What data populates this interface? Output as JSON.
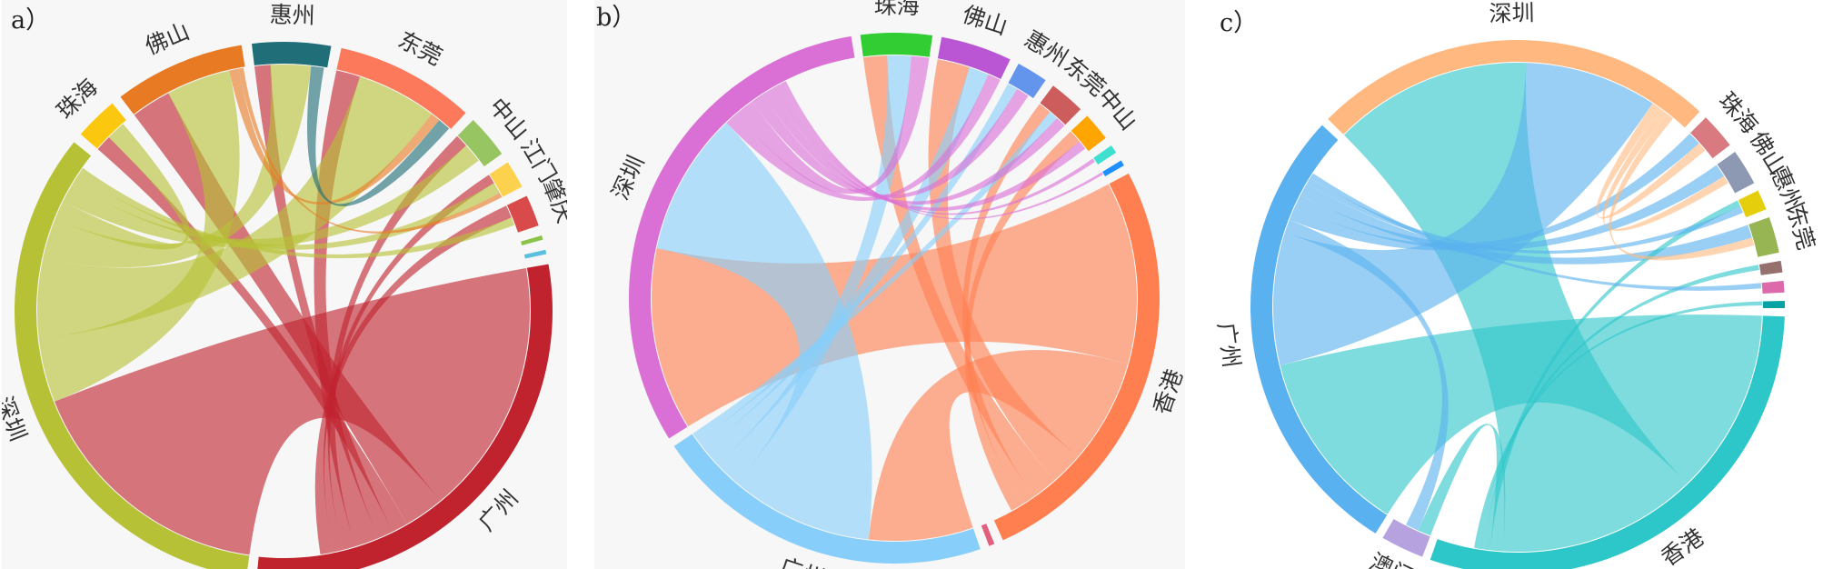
{
  "chart_data": [
    {
      "type": "chord",
      "panel": "a）",
      "groups": [
        {
          "name": "广州",
          "color": "#c0232e",
          "size": 28
        },
        {
          "name": "深圳",
          "color": "#b6c136",
          "size": 32
        },
        {
          "name": "珠海",
          "color": "#fcc80f",
          "size": 2.5
        },
        {
          "name": "佛山",
          "color": "#e97a24",
          "size": 7.5
        },
        {
          "name": "惠州",
          "color": "#1f6e78",
          "size": 4.5
        },
        {
          "name": "东莞",
          "color": "#fc7a5b",
          "size": 8
        },
        {
          "name": "中山",
          "color": "#96c561",
          "size": 2.5
        },
        {
          "name": "江门",
          "color": "#fcd14d",
          "size": 1.6
        },
        {
          "name": "肇庆",
          "color": "#d94a4a",
          "size": 1.8
        },
        {
          "name": "",
          "color": "#8bc34a",
          "size": 0.25
        },
        {
          "name": "",
          "color": "#5bc0de",
          "size": 0.25
        }
      ],
      "flows": [
        {
          "source": 0,
          "target": 1,
          "value": 16
        },
        {
          "source": 0,
          "target": 3,
          "value": 2.5
        },
        {
          "source": 0,
          "target": 2,
          "value": 1
        },
        {
          "source": 0,
          "target": 4,
          "value": 1
        },
        {
          "source": 0,
          "target": 5,
          "value": 1.5
        },
        {
          "source": 0,
          "target": 6,
          "value": 0.8
        },
        {
          "source": 0,
          "target": 7,
          "value": 0.6
        },
        {
          "source": 0,
          "target": 8,
          "value": 0.8
        },
        {
          "source": 1,
          "target": 3,
          "value": 4
        },
        {
          "source": 1,
          "target": 5,
          "value": 5
        },
        {
          "source": 1,
          "target": 4,
          "value": 2.5
        },
        {
          "source": 1,
          "target": 2,
          "value": 1.2
        },
        {
          "source": 1,
          "target": 6,
          "value": 1.2
        },
        {
          "source": 1,
          "target": 7,
          "value": 0.7
        },
        {
          "source": 1,
          "target": 8,
          "value": 0.5
        },
        {
          "source": 3,
          "target": 5,
          "value": 0.6
        },
        {
          "source": 4,
          "target": 5,
          "value": 0.8
        },
        {
          "source": 3,
          "target": 7,
          "value": 0.3
        }
      ]
    },
    {
      "type": "chord",
      "panel": "b）",
      "groups": [
        {
          "name": "香港",
          "color": "#ff7f50",
          "size": 30
        },
        {
          "name": "",
          "color": "#e0607e",
          "size": 0.4
        },
        {
          "name": "广州",
          "color": "#87cefa",
          "size": 24
        },
        {
          "name": "深圳",
          "color": "#da70d6",
          "size": 36
        },
        {
          "name": "珠海",
          "color": "#32cd32",
          "size": 5
        },
        {
          "name": "佛山",
          "color": "#ba55d3",
          "size": 5
        },
        {
          "name": "惠州",
          "color": "#6495ed",
          "size": 2.2
        },
        {
          "name": "东莞",
          "color": "#cd5c5c",
          "size": 2.5
        },
        {
          "name": "中山",
          "color": "#ffa500",
          "size": 2
        },
        {
          "name": "",
          "color": "#40e0d0",
          "size": 0.6
        },
        {
          "name": "",
          "color": "#1e90ff",
          "size": 0.4
        }
      ],
      "flows": [
        {
          "source": 0,
          "target": 3,
          "value": 14
        },
        {
          "source": 0,
          "target": 2,
          "value": 8
        },
        {
          "source": 0,
          "target": 5,
          "value": 2.5
        },
        {
          "source": 0,
          "target": 4,
          "value": 2
        },
        {
          "source": 0,
          "target": 7,
          "value": 1
        },
        {
          "source": 0,
          "target": 8,
          "value": 1
        },
        {
          "source": 2,
          "target": 3,
          "value": 11
        },
        {
          "source": 2,
          "target": 4,
          "value": 2
        },
        {
          "source": 2,
          "target": 5,
          "value": 1.5
        },
        {
          "source": 2,
          "target": 6,
          "value": 0.8
        },
        {
          "source": 2,
          "target": 7,
          "value": 0.7
        },
        {
          "source": 3,
          "target": 5,
          "value": 1
        },
        {
          "source": 3,
          "target": 4,
          "value": 1.5
        },
        {
          "source": 3,
          "target": 6,
          "value": 1
        },
        {
          "source": 3,
          "target": 7,
          "value": 0.8
        },
        {
          "source": 3,
          "target": 8,
          "value": 0.7
        },
        {
          "source": 3,
          "target": 9,
          "value": 0.3
        },
        {
          "source": 3,
          "target": 10,
          "value": 0.2
        }
      ]
    },
    {
      "type": "chord",
      "panel": "c）",
      "groups": [
        {
          "name": "香港",
          "color": "#2ec7c9",
          "size": 34
        },
        {
          "name": "澳门",
          "color": "#b6a2de",
          "size": 3
        },
        {
          "name": "广州",
          "color": "#5ab1ef",
          "size": 32
        },
        {
          "name": "深圳",
          "color": "#ffb980",
          "size": 28
        },
        {
          "name": "珠海",
          "color": "#d87a80",
          "size": 2.5
        },
        {
          "name": "佛山",
          "color": "#8d98b3",
          "size": 2.5
        },
        {
          "name": "惠州",
          "color": "#e5cf0d",
          "size": 1.4
        },
        {
          "name": "东莞",
          "color": "#97b552",
          "size": 2.5
        },
        {
          "name": "",
          "color": "#95706d",
          "size": 0.8
        },
        {
          "name": "",
          "color": "#dc69aa",
          "size": 0.8
        },
        {
          "name": "",
          "color": "#07a2a4",
          "size": 0.5
        }
      ],
      "flows": [
        {
          "source": 0,
          "target": 2,
          "value": 14
        },
        {
          "source": 0,
          "target": 3,
          "value": 15
        },
        {
          "source": 2,
          "target": 3,
          "value": 10
        },
        {
          "source": 0,
          "target": 1,
          "value": 1
        },
        {
          "source": 2,
          "target": 1,
          "value": 1
        },
        {
          "source": 2,
          "target": 4,
          "value": 1
        },
        {
          "source": 2,
          "target": 5,
          "value": 1
        },
        {
          "source": 2,
          "target": 7,
          "value": 1
        },
        {
          "source": 3,
          "target": 4,
          "value": 0.7
        },
        {
          "source": 3,
          "target": 5,
          "value": 0.6
        },
        {
          "source": 0,
          "target": 6,
          "value": 0.5
        },
        {
          "source": 2,
          "target": 6,
          "value": 0.5
        },
        {
          "source": 0,
          "target": 8,
          "value": 0.4
        },
        {
          "source": 2,
          "target": 9,
          "value": 0.4
        },
        {
          "source": 0,
          "target": 10,
          "value": 0.3
        },
        {
          "source": 3,
          "target": 7,
          "value": 0.6
        }
      ]
    }
  ]
}
